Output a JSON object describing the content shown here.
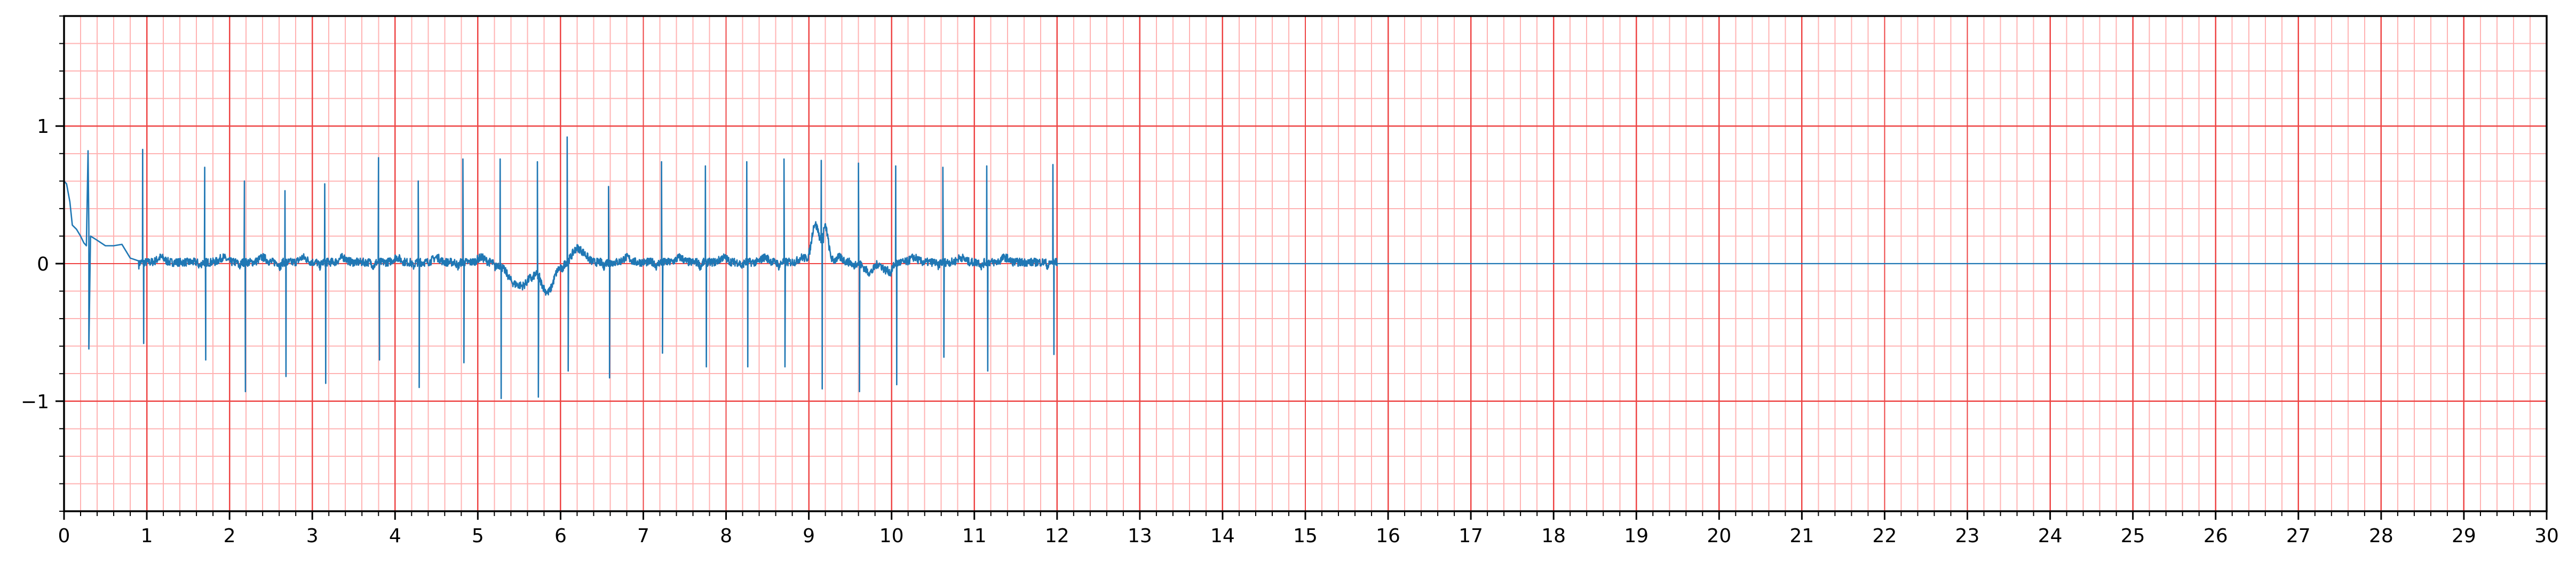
{
  "chart_data": {
    "type": "line",
    "title": "",
    "xlabel": "",
    "ylabel": "",
    "xlim": [
      0,
      30
    ],
    "ylim": [
      -1.8,
      1.8
    ],
    "x_ticks": [
      0,
      1,
      2,
      3,
      4,
      5,
      6,
      7,
      8,
      9,
      10,
      11,
      12,
      13,
      14,
      15,
      16,
      17,
      18,
      19,
      20,
      21,
      22,
      23,
      24,
      25,
      26,
      27,
      28,
      29,
      30
    ],
    "x_tick_labels": [
      "0",
      "1",
      "2",
      "3",
      "4",
      "5",
      "6",
      "7",
      "8",
      "9",
      "10",
      "11",
      "12",
      "13",
      "14",
      "15",
      "16",
      "17",
      "18",
      "19",
      "20",
      "21",
      "22",
      "23",
      "24",
      "25",
      "26",
      "27",
      "28",
      "29",
      "30"
    ],
    "y_ticks": [
      -1,
      0,
      1
    ],
    "y_tick_labels": [
      "−1",
      "0",
      "1"
    ],
    "grid": {
      "major": true,
      "minor": true,
      "major_x_step": 1,
      "major_y_step": 1,
      "minor_x_step": 0.2,
      "minor_y_step": 0.2,
      "major_color": "#ee4444",
      "minor_color": "#ffb3b3"
    },
    "legend": "none",
    "series": [
      {
        "color": "#1f77b4",
        "signal_end": 12.0,
        "flat_value_after_end": 0.0,
        "start_segment": [
          [
            0.0,
            0.6
          ],
          [
            0.03,
            0.58
          ],
          [
            0.07,
            0.45
          ],
          [
            0.1,
            0.28
          ],
          [
            0.15,
            0.25
          ],
          [
            0.2,
            0.2
          ],
          [
            0.24,
            0.15
          ],
          [
            0.27,
            0.13
          ],
          [
            0.29,
            0.82
          ],
          [
            0.3,
            0.25
          ],
          [
            0.3,
            -0.62
          ],
          [
            0.32,
            0.2
          ],
          [
            0.4,
            0.17
          ],
          [
            0.5,
            0.13
          ],
          [
            0.6,
            0.13
          ],
          [
            0.7,
            0.14
          ],
          [
            0.8,
            0.04
          ],
          [
            0.9,
            0.02
          ]
        ],
        "beats": [
          {
            "t": 0.95,
            "r": 0.83,
            "s": -0.58
          },
          {
            "t": 1.7,
            "r": 0.7,
            "s": -0.7
          },
          {
            "t": 2.18,
            "r": 0.6,
            "s": -0.93
          },
          {
            "t": 2.67,
            "r": 0.53,
            "s": -0.82
          },
          {
            "t": 3.15,
            "r": 0.58,
            "s": -0.87
          },
          {
            "t": 3.8,
            "r": 0.77,
            "s": -0.7
          },
          {
            "t": 4.28,
            "r": 0.6,
            "s": -0.9
          },
          {
            "t": 4.82,
            "r": 0.76,
            "s": -0.72
          },
          {
            "t": 5.27,
            "r": 0.76,
            "s": -0.98
          },
          {
            "t": 5.72,
            "r": 0.74,
            "s": -0.97
          },
          {
            "t": 6.08,
            "r": 0.92,
            "s": -0.78
          },
          {
            "t": 6.58,
            "r": 0.56,
            "s": -0.83
          },
          {
            "t": 7.22,
            "r": 0.74,
            "s": -0.65
          },
          {
            "t": 7.75,
            "r": 0.71,
            "s": -0.75
          },
          {
            "t": 8.25,
            "r": 0.74,
            "s": -0.75
          },
          {
            "t": 8.7,
            "r": 0.76,
            "s": -0.75
          },
          {
            "t": 9.15,
            "r": 0.75,
            "s": -0.91
          },
          {
            "t": 9.6,
            "r": 0.73,
            "s": -0.93
          },
          {
            "t": 10.05,
            "r": 0.71,
            "s": -0.88
          },
          {
            "t": 10.62,
            "r": 0.7,
            "s": -0.68
          },
          {
            "t": 11.15,
            "r": 0.71,
            "s": -0.78
          },
          {
            "t": 11.95,
            "r": 0.72,
            "s": -0.66
          }
        ],
        "slow_wave_dips": [
          {
            "t": 5.5,
            "depth": -0.2,
            "width": 0.16
          },
          {
            "t": 5.85,
            "depth": -0.22,
            "width": 0.12
          },
          {
            "t": 9.75,
            "depth": -0.08,
            "width": 0.1
          },
          {
            "t": 9.95,
            "depth": -0.06,
            "width": 0.08
          }
        ],
        "slow_wave_bumps": [
          {
            "t": 6.2,
            "height": 0.1,
            "width": 0.08
          },
          {
            "t": 9.08,
            "height": 0.3,
            "width": 0.06
          },
          {
            "t": 9.2,
            "height": 0.25,
            "width": 0.05
          }
        ]
      }
    ]
  }
}
